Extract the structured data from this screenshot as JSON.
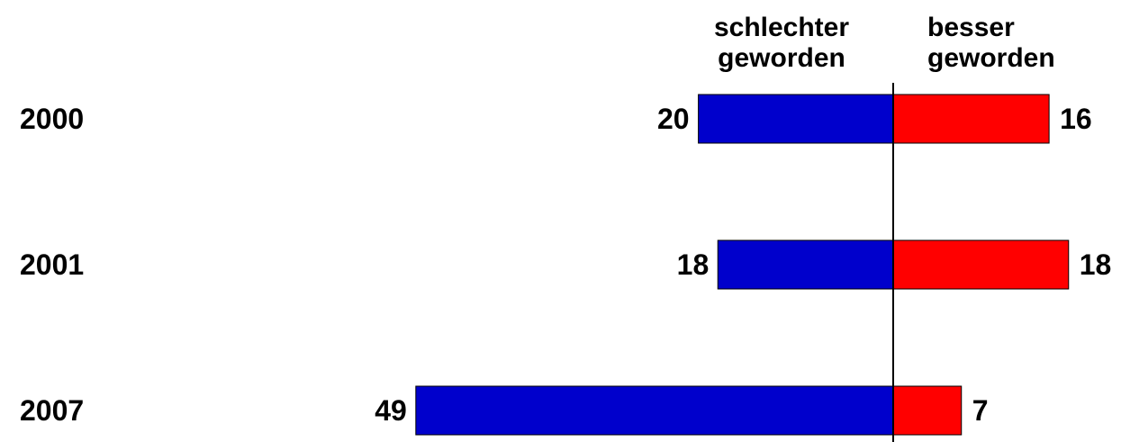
{
  "chart_data": {
    "type": "bar",
    "orientation": "horizontal",
    "layout": "diverging",
    "categories": [
      "2000",
      "2001",
      "2007"
    ],
    "series": [
      {
        "name": "schlechter geworden",
        "legend_lines": [
          "schlechter",
          "geworden"
        ],
        "values": [
          20,
          18,
          49
        ],
        "color": "#0000cc",
        "direction": "left"
      },
      {
        "name": "besser geworden",
        "legend_lines": [
          "besser",
          "geworden"
        ],
        "values": [
          16,
          18,
          7
        ],
        "color": "#ff0000",
        "direction": "right"
      }
    ],
    "grid": false,
    "axis_line": "center"
  }
}
